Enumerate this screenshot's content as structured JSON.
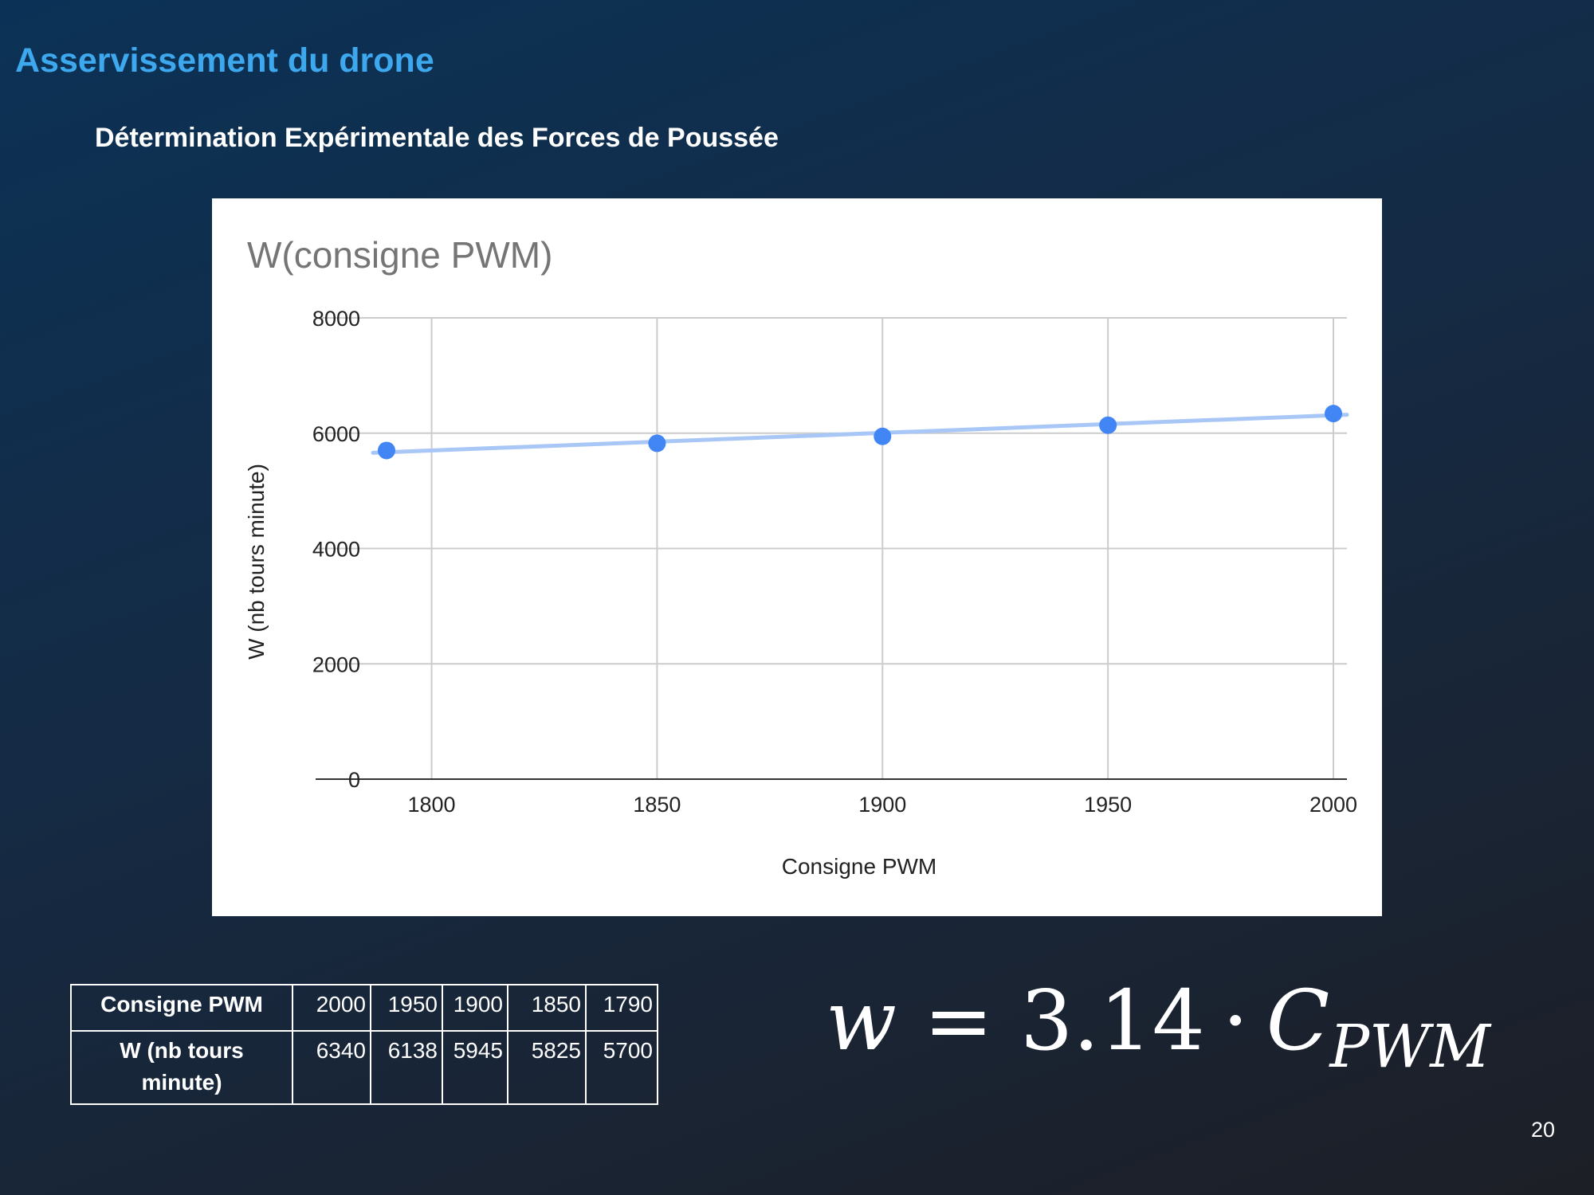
{
  "slide": {
    "title": "Asservissement du drone",
    "subtitle": "Détermination Expérimentale des Forces de Poussée",
    "page_number": "20"
  },
  "chart_data": {
    "type": "scatter",
    "title": "W(consigne PWM)",
    "xlabel": "Consigne PWM",
    "ylabel": "W (nb tours minute)",
    "x_ticks": [
      "1800",
      "1850",
      "1900",
      "1950",
      "2000"
    ],
    "y_ticks": [
      "0",
      "2000",
      "4000",
      "6000",
      "8000"
    ],
    "xlim": [
      1787,
      2003
    ],
    "ylim": [
      0,
      8000
    ],
    "grid": true,
    "legend": "none",
    "series": [
      {
        "points": [
          {
            "x": 1790,
            "y": 5700
          },
          {
            "x": 1850,
            "y": 5825
          },
          {
            "x": 1900,
            "y": 5945
          },
          {
            "x": 1950,
            "y": 6138
          },
          {
            "x": 2000,
            "y": 6340
          }
        ],
        "color": "#4285f4"
      }
    ],
    "trendline": {
      "color": "#a8c7f7",
      "from": {
        "x": 1787,
        "y": 5660
      },
      "to": {
        "x": 2003,
        "y": 6320
      }
    }
  },
  "table": {
    "rows": [
      {
        "header": "Consigne PWM",
        "values": [
          "2000",
          "1950",
          "1900",
          "1850",
          "1790"
        ]
      },
      {
        "header": "W (nb tours minute)",
        "values": [
          "6340",
          "6138",
          "5945",
          "5825",
          "5700"
        ]
      }
    ]
  },
  "formula": {
    "lhs": "w",
    "equals": "=",
    "coefficient": "3.14",
    "dot": "·",
    "var": "C",
    "subscript": "PWM"
  }
}
